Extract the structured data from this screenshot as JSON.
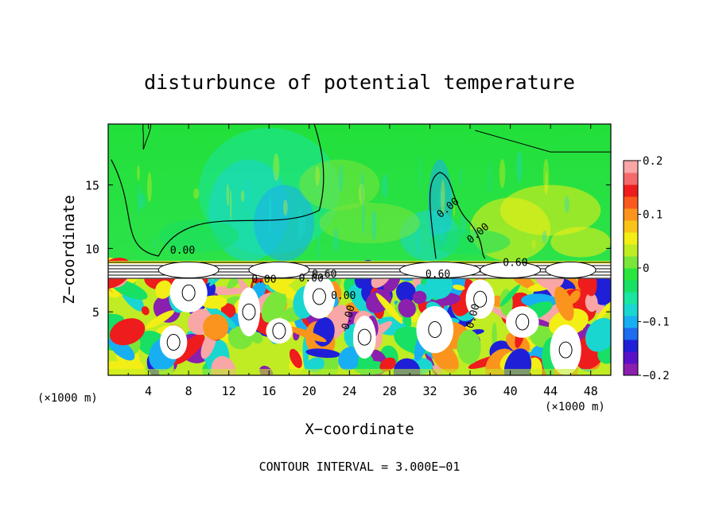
{
  "chart_data": {
    "type": "heatmap",
    "title": "disturbunce of potential temperature",
    "xlabel": "X−coordinate",
    "ylabel": "Z−coordinate",
    "x_unit_left": "(×1000 m)",
    "x_unit_right": "(×1000 m)",
    "xlim": [
      0,
      50
    ],
    "ylim": [
      0,
      19.8
    ],
    "x_ticks": [
      4,
      8,
      12,
      16,
      20,
      24,
      28,
      32,
      36,
      40,
      44,
      48
    ],
    "y_ticks": [
      5,
      10,
      15
    ],
    "x_tick_labels": [
      "4",
      "8",
      "12",
      "16",
      "20",
      "24",
      "28",
      "32",
      "36",
      "40",
      "44",
      "48"
    ],
    "y_tick_labels": [
      "5",
      "10",
      "15"
    ],
    "colorbar": {
      "range": [
        -0.2,
        0.2
      ],
      "ticks": [
        0.2,
        0.1,
        0,
        -0.1,
        -0.2
      ],
      "tick_labels": [
        "0.2",
        "0.1",
        "0",
        "−0.1",
        "−0.2"
      ],
      "colors": [
        "#8b1fae",
        "#5a12c8",
        "#1f1fd8",
        "#1e6cf0",
        "#18aef2",
        "#19d7d0",
        "#19e6a0",
        "#18e064",
        "#29e63c",
        "#7be63a",
        "#c0ec24",
        "#f2ee16",
        "#f8c418",
        "#fb941c",
        "#fa5a1e",
        "#ee1c1c",
        "#f46a6a",
        "#f8a6a6"
      ]
    },
    "contour_labels": [
      "0.00",
      "0.00",
      "0.00",
      "0.00",
      "0.60",
      "0.60",
      "0.60",
      "0.00",
      "0.00",
      "0.00",
      "0.00"
    ],
    "footer": "CONTOUR INTERVAL = 3.000E−01"
  }
}
